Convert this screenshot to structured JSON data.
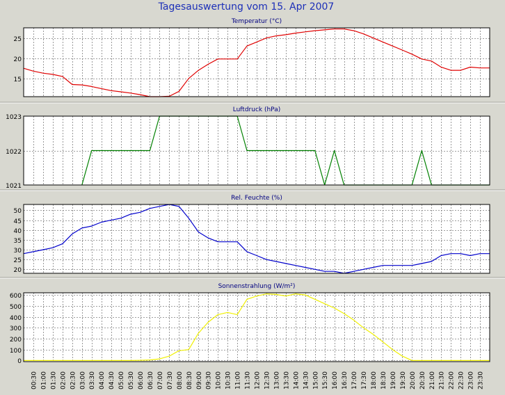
{
  "title": "Tagesauswertung vom 15. Apr 2007",
  "colors": {
    "background": "#d8d8d0",
    "plot_background": "#ffffff",
    "title": "#1c2fb8",
    "panel_title": "#000080",
    "grid": "#7f7f7f",
    "temperature": "#e00000",
    "pressure": "#008000",
    "humidity": "#0000cc",
    "radiation": "#f0f000"
  },
  "chart_data": [
    {
      "type": "line",
      "title": "Temperatur (°C)",
      "ylim": [
        10.5,
        27.5
      ],
      "yticks": [
        15,
        20,
        25
      ],
      "grid": true,
      "color": "#e00000",
      "x": [
        0,
        0.5,
        1,
        1.5,
        2,
        2.5,
        3,
        3.5,
        4,
        4.5,
        5,
        5.5,
        6,
        6.5,
        7,
        7.5,
        8,
        8.5,
        9,
        9.5,
        10,
        10.5,
        11,
        11.5,
        12,
        12.5,
        13,
        13.5,
        14,
        14.5,
        15,
        15.5,
        16,
        16.5,
        17,
        17.5,
        18,
        18.5,
        19,
        19.5,
        20,
        20.5,
        21,
        21.5,
        22,
        22.5,
        23,
        23.5,
        24
      ],
      "values": [
        17.5,
        16.8,
        16.3,
        16.0,
        15.5,
        13.5,
        13.4,
        13.0,
        12.5,
        12.0,
        11.7,
        11.4,
        11.0,
        10.5,
        10.5,
        10.6,
        11.8,
        15.0,
        17.0,
        18.5,
        19.8,
        19.8,
        19.8,
        23.0,
        24.0,
        25.0,
        25.5,
        25.8,
        26.2,
        26.5,
        26.8,
        27.0,
        27.2,
        27.2,
        26.8,
        26.0,
        25.0,
        24.0,
        23.0,
        22.0,
        21.0,
        19.8,
        19.3,
        17.8,
        17.0,
        17.0,
        17.8,
        17.6,
        17.6
      ]
    },
    {
      "type": "line",
      "title": "Luftdruck (hPa)",
      "ylim": [
        1021,
        1023
      ],
      "yticks": [
        1021,
        1022,
        1023
      ],
      "grid": true,
      "color": "#008000",
      "x": [
        3,
        3.5,
        6.5,
        7,
        11,
        11.5,
        15,
        15.5,
        16,
        16.5,
        20,
        20.5,
        21,
        24
      ],
      "values": [
        1021,
        1022,
        1022,
        1023,
        1023,
        1022,
        1022,
        1021,
        1022,
        1021,
        1021,
        1022,
        1021,
        1021
      ]
    },
    {
      "type": "line",
      "title": "Rel. Feuchte (%)",
      "ylim": [
        18,
        53
      ],
      "yticks": [
        20,
        25,
        30,
        35,
        40,
        45,
        50
      ],
      "grid": true,
      "color": "#0000cc",
      "x": [
        0,
        0.5,
        1,
        1.5,
        2,
        2.5,
        3,
        3.5,
        4,
        4.5,
        5,
        5.5,
        6,
        6.5,
        7,
        7.5,
        8,
        8.5,
        9,
        9.5,
        10,
        10.5,
        11,
        11.5,
        12,
        12.5,
        13,
        13.5,
        14,
        14.5,
        15,
        15.5,
        16,
        16.5,
        17,
        17.5,
        18,
        18.5,
        19,
        19.5,
        20,
        20.5,
        21,
        21.5,
        22,
        22.5,
        23,
        23.5,
        24
      ],
      "values": [
        28,
        29,
        30,
        31,
        33,
        38,
        41,
        42,
        44,
        45,
        46,
        48,
        49,
        51,
        52,
        53,
        52,
        46,
        39,
        36,
        34,
        34,
        34,
        29,
        27,
        25,
        24,
        23,
        22,
        21,
        20,
        19,
        19,
        18,
        19,
        20,
        21,
        22,
        22,
        22,
        22,
        23,
        24,
        27,
        28,
        28,
        27,
        28,
        28
      ]
    },
    {
      "type": "line",
      "title": "Sonnenstrahlung (W/m²)",
      "ylim": [
        -10,
        620
      ],
      "yticks": [
        0,
        100,
        200,
        300,
        400,
        500,
        600
      ],
      "grid": true,
      "color": "#f0f000",
      "x": [
        0,
        5.5,
        6,
        6.5,
        7,
        7.5,
        8,
        8.5,
        9,
        9.5,
        10,
        10.5,
        11,
        11.5,
        12,
        12.5,
        13,
        13.5,
        14,
        14.5,
        15,
        15.5,
        16,
        16.5,
        17,
        17.5,
        18,
        18.5,
        19,
        19.5,
        20,
        24
      ],
      "values": [
        0,
        0,
        2,
        5,
        15,
        40,
        90,
        100,
        250,
        350,
        420,
        440,
        420,
        560,
        590,
        610,
        605,
        590,
        610,
        600,
        560,
        520,
        480,
        430,
        370,
        300,
        240,
        170,
        100,
        40,
        0,
        0
      ]
    }
  ],
  "x_tick_labels": [
    "00:30",
    "01:00",
    "01:30",
    "02:00",
    "02:30",
    "03:00",
    "03:30",
    "04:00",
    "04:30",
    "05:00",
    "05:30",
    "06:00",
    "06:30",
    "07:00",
    "07:30",
    "08:00",
    "08:30",
    "09:00",
    "09:30",
    "10:00",
    "10:30",
    "11:00",
    "11:30",
    "12:00",
    "12:30",
    "13:00",
    "13:30",
    "14:00",
    "14:30",
    "15:00",
    "15:30",
    "16:00",
    "16:30",
    "17:00",
    "17:30",
    "18:00",
    "18:30",
    "19:00",
    "19:30",
    "20:00",
    "20:30",
    "21:00",
    "21:30",
    "22:00",
    "22:30",
    "23:00",
    "23:30"
  ]
}
